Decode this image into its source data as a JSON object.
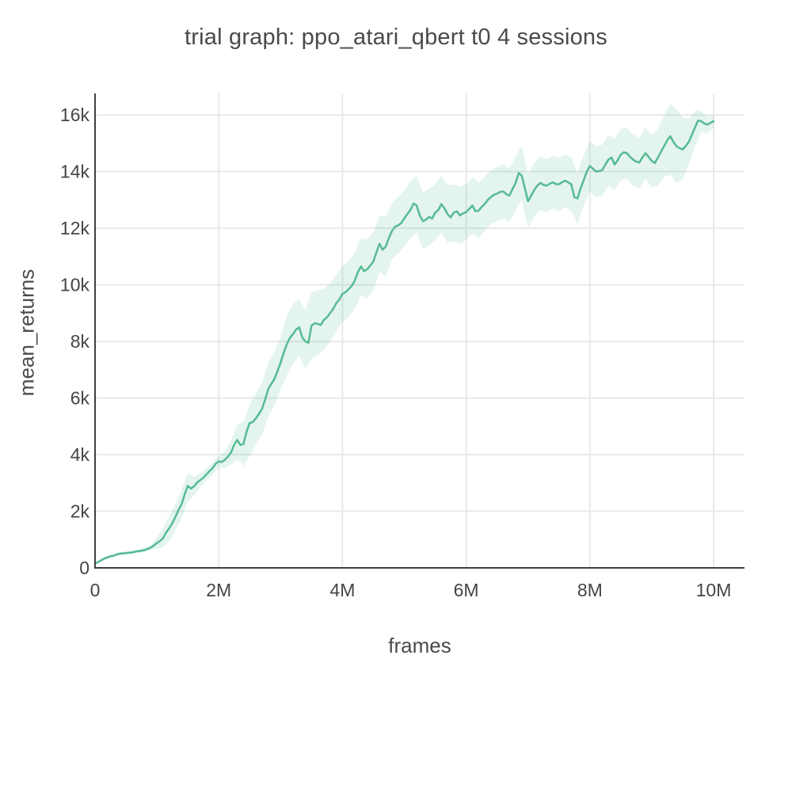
{
  "chart_data": {
    "type": "line",
    "title": "trial graph: ppo_atari_qbert t0 4 sessions",
    "xlabel": "frames",
    "ylabel": "mean_returns",
    "legend": "none",
    "grid": true,
    "xlim": [
      0,
      10500000
    ],
    "ylim": [
      0,
      16760
    ],
    "x_tick_values": [
      0,
      2000000,
      4000000,
      6000000,
      8000000,
      10000000
    ],
    "x_tick_labels": [
      "0",
      "2M",
      "4M",
      "6M",
      "8M",
      "10M"
    ],
    "y_tick_values": [
      0,
      2000,
      4000,
      6000,
      8000,
      10000,
      12000,
      14000,
      16000
    ],
    "y_tick_labels": [
      "0",
      "2k",
      "4k",
      "6k",
      "8k",
      "10k",
      "12k",
      "14k",
      "16k"
    ],
    "series": [
      {
        "name": "mean_returns",
        "x_start": 0,
        "x_step": 50000,
        "values": [
          150,
          210,
          270,
          330,
          370,
          410,
          430,
          475,
          500,
          515,
          520,
          540,
          545,
          575,
          590,
          605,
          630,
          665,
          720,
          790,
          880,
          950,
          1050,
          1250,
          1400,
          1580,
          1800,
          2050,
          2250,
          2600,
          2900,
          2800,
          2880,
          3010,
          3100,
          3180,
          3300,
          3420,
          3520,
          3680,
          3760,
          3740,
          3820,
          3930,
          4080,
          4350,
          4520,
          4340,
          4380,
          4800,
          5120,
          5150,
          5280,
          5440,
          5620,
          5950,
          6320,
          6500,
          6680,
          6950,
          7250,
          7600,
          7900,
          8120,
          8260,
          8420,
          8500,
          8150,
          8000,
          7950,
          8560,
          8640,
          8620,
          8580,
          8760,
          8850,
          9000,
          9150,
          9350,
          9480,
          9680,
          9740,
          9850,
          9960,
          10150,
          10450,
          10650,
          10480,
          10550,
          10680,
          10820,
          11150,
          11450,
          11240,
          11350,
          11650,
          11900,
          12050,
          12100,
          12180,
          12350,
          12500,
          12650,
          12870,
          12800,
          12450,
          12250,
          12300,
          12400,
          12340,
          12550,
          12640,
          12850,
          12700,
          12500,
          12380,
          12550,
          12600,
          12450,
          12520,
          12570,
          12680,
          12800,
          12600,
          12620,
          12750,
          12850,
          13000,
          13100,
          13180,
          13220,
          13280,
          13300,
          13200,
          13150,
          13380,
          13600,
          13950,
          13850,
          13400,
          12950,
          13150,
          13350,
          13500,
          13600,
          13530,
          13500,
          13570,
          13620,
          13560,
          13550,
          13620,
          13680,
          13620,
          13550,
          13100,
          13050,
          13400,
          13700,
          14000,
          14200,
          14100,
          14000,
          14020,
          14050,
          14250,
          14420,
          14500,
          14250,
          14400,
          14600,
          14680,
          14650,
          14520,
          14420,
          14350,
          14320,
          14500,
          14650,
          14520,
          14380,
          14300,
          14500,
          14700,
          14900,
          15100,
          15250,
          15050,
          14900,
          14830,
          14780,
          14900,
          15050,
          15300,
          15560,
          15800,
          15780,
          15700,
          15660,
          15720,
          15780
        ]
      }
    ],
    "band": {
      "name": "std_dev_band",
      "x_start": 0,
      "x_step": 100000,
      "lower": [
        110,
        220,
        310,
        370,
        440,
        460,
        485,
        530,
        560,
        630,
        680,
        720,
        950,
        1350,
        1750,
        2350,
        2550,
        2850,
        3080,
        3300,
        3560,
        3520,
        3650,
        3850,
        3600,
        3950,
        4350,
        4700,
        5350,
        5750,
        6300,
        6800,
        7200,
        7500,
        7000,
        7400,
        7500,
        7700,
        8000,
        8350,
        8700,
        8850,
        9150,
        9650,
        9500,
        9800,
        10450,
        10300,
        10900,
        11100,
        11350,
        11650,
        11850,
        11250,
        11400,
        11550,
        11850,
        11500,
        11550,
        11450,
        11600,
        11800,
        11650,
        11900,
        12150,
        12250,
        12350,
        12200,
        12650,
        13000,
        12000,
        12400,
        12650,
        12550,
        12700,
        12600,
        12750,
        12600,
        12150,
        12800,
        13300,
        13100,
        13150,
        13500,
        13350,
        13700,
        13750,
        13500,
        13400,
        13750,
        13450,
        13500,
        13800,
        13900,
        13600,
        13750,
        14250,
        14900,
        15400,
        15350,
        15550
      ],
      "upper": [
        190,
        320,
        430,
        490,
        560,
        580,
        605,
        650,
        700,
        810,
        1080,
        1380,
        1850,
        2250,
        2750,
        3350,
        3200,
        3350,
        3520,
        3740,
        3960,
        4120,
        4500,
        5050,
        5150,
        5750,
        6150,
        6550,
        7250,
        7600,
        8150,
        8900,
        9300,
        9500,
        9100,
        9750,
        9800,
        9850,
        10050,
        10350,
        10650,
        10850,
        11150,
        11650,
        11600,
        11850,
        12450,
        12400,
        12900,
        13100,
        13350,
        13650,
        13850,
        13250,
        13400,
        13550,
        13850,
        13500,
        13550,
        13450,
        13550,
        13800,
        13600,
        13800,
        14050,
        14150,
        14250,
        14100,
        14550,
        14900,
        13900,
        14300,
        14550,
        14450,
        14550,
        14500,
        14600,
        14500,
        13950,
        14600,
        15100,
        14900,
        14950,
        15300,
        15150,
        15500,
        15550,
        15300,
        15200,
        15550,
        15300,
        15500,
        16000,
        16400,
        16200,
        15900,
        15850,
        16150,
        16150,
        15950,
        15980
      ]
    },
    "colors": {
      "line": "#56bb93",
      "band_fill": "#56bb93",
      "band_opacity": 0.16,
      "grid": "#e9e9e9",
      "spine": "#3f3f3f",
      "text": "#4a4a4a"
    }
  }
}
